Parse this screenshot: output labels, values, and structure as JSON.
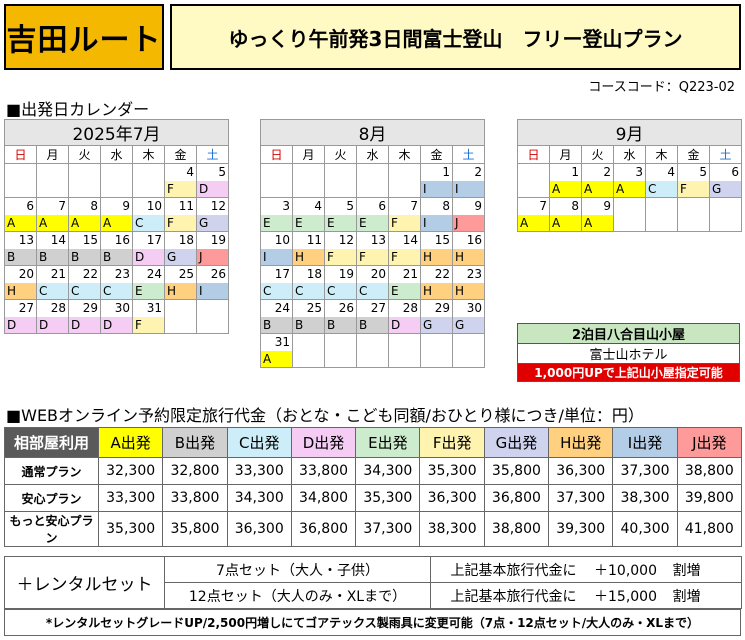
{
  "route": "吉田ルート",
  "title": "ゆっくり午前発3日間富士登山　フリー登山プラン",
  "course_code": "コースコード：Q223-02",
  "calendar_section": "■出発日カレンダー",
  "weekdays": [
    "日",
    "月",
    "火",
    "水",
    "木",
    "金",
    "土"
  ],
  "months": [
    {
      "name": "2025年7月",
      "weeks": [
        [
          {
            "d": ""
          },
          {
            "d": ""
          },
          {
            "d": ""
          },
          {
            "d": ""
          },
          {
            "d": ""
          },
          {
            "d": "4",
            "c": "F"
          },
          {
            "d": "5",
            "c": "D"
          }
        ],
        [
          {
            "d": "6",
            "c": "A"
          },
          {
            "d": "7",
            "c": "A"
          },
          {
            "d": "8",
            "c": "A"
          },
          {
            "d": "9",
            "c": "A"
          },
          {
            "d": "10",
            "c": "C"
          },
          {
            "d": "11",
            "c": "F"
          },
          {
            "d": "12",
            "c": "G"
          }
        ],
        [
          {
            "d": "13",
            "c": "B"
          },
          {
            "d": "14",
            "c": "B"
          },
          {
            "d": "15",
            "c": "B"
          },
          {
            "d": "16",
            "c": "B"
          },
          {
            "d": "17",
            "c": "D"
          },
          {
            "d": "18",
            "c": "G"
          },
          {
            "d": "19",
            "c": "J"
          }
        ],
        [
          {
            "d": "20",
            "c": "H"
          },
          {
            "d": "21",
            "c": "C"
          },
          {
            "d": "22",
            "c": "C"
          },
          {
            "d": "23",
            "c": "C"
          },
          {
            "d": "24",
            "c": "E"
          },
          {
            "d": "25",
            "c": "H"
          },
          {
            "d": "26",
            "c": "I"
          }
        ],
        [
          {
            "d": "27",
            "c": "D"
          },
          {
            "d": "28",
            "c": "D"
          },
          {
            "d": "29",
            "c": "D"
          },
          {
            "d": "30",
            "c": "D"
          },
          {
            "d": "31",
            "c": "F"
          },
          {
            "d": ""
          },
          {
            "d": ""
          }
        ]
      ]
    },
    {
      "name": "8月",
      "weeks": [
        [
          {
            "d": ""
          },
          {
            "d": ""
          },
          {
            "d": ""
          },
          {
            "d": ""
          },
          {
            "d": ""
          },
          {
            "d": "1",
            "c": "I"
          },
          {
            "d": "2",
            "c": "I"
          }
        ],
        [
          {
            "d": "3",
            "c": "E"
          },
          {
            "d": "4",
            "c": "E"
          },
          {
            "d": "5",
            "c": "E"
          },
          {
            "d": "6",
            "c": "E"
          },
          {
            "d": "7",
            "c": "F"
          },
          {
            "d": "8",
            "c": "I"
          },
          {
            "d": "9",
            "c": "J"
          }
        ],
        [
          {
            "d": "10",
            "c": "I"
          },
          {
            "d": "11",
            "c": "H"
          },
          {
            "d": "12",
            "c": "F"
          },
          {
            "d": "13",
            "c": "F"
          },
          {
            "d": "14",
            "c": "F"
          },
          {
            "d": "15",
            "c": "H"
          },
          {
            "d": "16",
            "c": "H"
          }
        ],
        [
          {
            "d": "17",
            "c": "C"
          },
          {
            "d": "18",
            "c": "C"
          },
          {
            "d": "19",
            "c": "C"
          },
          {
            "d": "20",
            "c": "C"
          },
          {
            "d": "21",
            "c": "E"
          },
          {
            "d": "22",
            "c": "H"
          },
          {
            "d": "23",
            "c": "H"
          }
        ],
        [
          {
            "d": "24",
            "c": "B"
          },
          {
            "d": "25",
            "c": "B"
          },
          {
            "d": "26",
            "c": "B"
          },
          {
            "d": "27",
            "c": "B"
          },
          {
            "d": "28",
            "c": "D"
          },
          {
            "d": "29",
            "c": "G"
          },
          {
            "d": "30",
            "c": "G"
          }
        ],
        [
          {
            "d": "31",
            "c": "A"
          },
          {
            "d": ""
          },
          {
            "d": ""
          },
          {
            "d": ""
          },
          {
            "d": ""
          },
          {
            "d": ""
          },
          {
            "d": ""
          }
        ]
      ]
    },
    {
      "name": "9月",
      "weeks": [
        [
          {
            "d": ""
          },
          {
            "d": "1",
            "c": "A"
          },
          {
            "d": "2",
            "c": "A"
          },
          {
            "d": "3",
            "c": "A"
          },
          {
            "d": "4",
            "c": "C"
          },
          {
            "d": "5",
            "c": "F"
          },
          {
            "d": "6",
            "c": "G"
          }
        ],
        [
          {
            "d": "7",
            "c": "A"
          },
          {
            "d": "8",
            "c": "A"
          },
          {
            "d": "9",
            "c": "A"
          },
          {
            "d": ""
          },
          {
            "d": ""
          },
          {
            "d": ""
          },
          {
            "d": ""
          }
        ]
      ]
    }
  ],
  "hut": {
    "line1": "2泊目八合目山小屋",
    "line2": "富士山ホテル",
    "line3": "1,000円UPで上記山小屋指定可能"
  },
  "price_section": "■WEBオンライン予約限定旅行代金（おとな・こども同額/おひとり様につき/単位：円）",
  "price_table": {
    "corner": "相部屋利用",
    "columns": [
      "A出発",
      "B出発",
      "C出発",
      "D出発",
      "E出発",
      "F出発",
      "G出発",
      "H出発",
      "I出発",
      "J出発"
    ],
    "rows": [
      {
        "label": "通常プラン",
        "values": [
          "32,300",
          "32,800",
          "33,300",
          "33,800",
          "34,300",
          "35,300",
          "35,800",
          "36,300",
          "37,300",
          "38,800"
        ]
      },
      {
        "label": "安心プラン",
        "values": [
          "33,300",
          "33,800",
          "34,300",
          "34,800",
          "35,300",
          "36,300",
          "36,800",
          "37,300",
          "38,300",
          "39,800"
        ]
      },
      {
        "label": "もっと安心プラン",
        "values": [
          "35,300",
          "35,800",
          "36,300",
          "36,800",
          "37,300",
          "38,300",
          "38,800",
          "39,300",
          "40,300",
          "41,800"
        ]
      }
    ]
  },
  "rental": {
    "title": "＋レンタルセット",
    "rows": [
      {
        "set": "7点セット（大人・子供）",
        "note": "上記基本旅行代金に",
        "price": "＋10,000",
        "suffix": "割増"
      },
      {
        "set": "12点セット（大人のみ・XLまで）",
        "note": "上記基本旅行代金に",
        "price": "＋15,000",
        "suffix": "割増"
      }
    ]
  },
  "footnote": "*レンタルセットグレードUP/2,500円増しにてゴアテックス製雨具に変更可能（7点・12点セット/大人のみ・XLまで）",
  "colors": {
    "A": "#ffff00",
    "B": "#d0d0d0",
    "C": "#cdeef8",
    "D": "#f4ccf4",
    "E": "#cdeccd",
    "F": "#fff3b0",
    "G": "#cfd3ee",
    "H": "#ffd080",
    "I": "#b4cde6",
    "J": "#ff9a9a"
  }
}
